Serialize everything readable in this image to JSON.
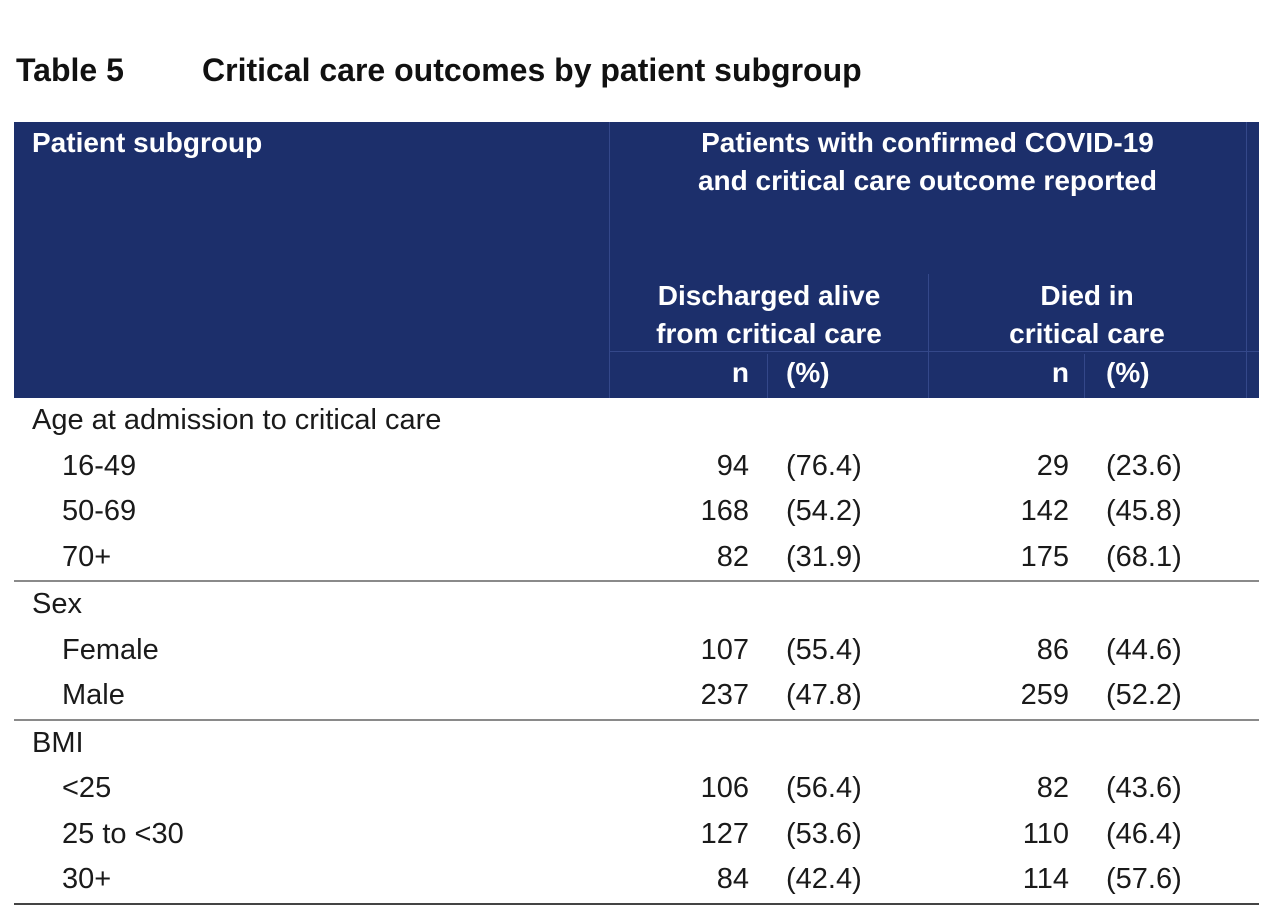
{
  "caption": {
    "label": "Table 5",
    "title": "Critical care outcomes by patient subgroup"
  },
  "header": {
    "subgroup_label": "Patient subgroup",
    "span_line1": "Patients with confirmed COVID-19",
    "span_line2": "and critical care outcome reported",
    "discharged_line1": "Discharged alive",
    "discharged_line2": "from critical care",
    "died_line1": "Died in",
    "died_line2": "critical care",
    "n_label": "n",
    "pct_label": "(%)"
  },
  "groups": [
    {
      "name": "Age at admission to critical care",
      "rows": [
        {
          "label": "16-49",
          "discharged_n": "94",
          "discharged_pct": "(76.4)",
          "died_n": "29",
          "died_pct": "(23.6)"
        },
        {
          "label": "50-69",
          "discharged_n": "168",
          "discharged_pct": "(54.2)",
          "died_n": "142",
          "died_pct": "(45.8)"
        },
        {
          "label": "70+",
          "discharged_n": "82",
          "discharged_pct": "(31.9)",
          "died_n": "175",
          "died_pct": "(68.1)"
        }
      ]
    },
    {
      "name": "Sex",
      "rows": [
        {
          "label": "Female",
          "discharged_n": "107",
          "discharged_pct": "(55.4)",
          "died_n": "86",
          "died_pct": "(44.6)"
        },
        {
          "label": "Male",
          "discharged_n": "237",
          "discharged_pct": "(47.8)",
          "died_n": "259",
          "died_pct": "(52.2)"
        }
      ]
    },
    {
      "name": "BMI",
      "rows": [
        {
          "label": "<25",
          "discharged_n": "106",
          "discharged_pct": "(56.4)",
          "died_n": "82",
          "died_pct": "(43.6)"
        },
        {
          "label": "25 to <30",
          "discharged_n": "127",
          "discharged_pct": "(53.6)",
          "died_n": "110",
          "died_pct": "(46.4)"
        },
        {
          "label": "30+",
          "discharged_n": "84",
          "discharged_pct": "(42.4)",
          "died_n": "114",
          "died_pct": "(57.6)"
        }
      ]
    }
  ],
  "colors": {
    "header_bg": "#1c2f6b",
    "header_text": "#ffffff",
    "divider": "#8a8a8a"
  }
}
